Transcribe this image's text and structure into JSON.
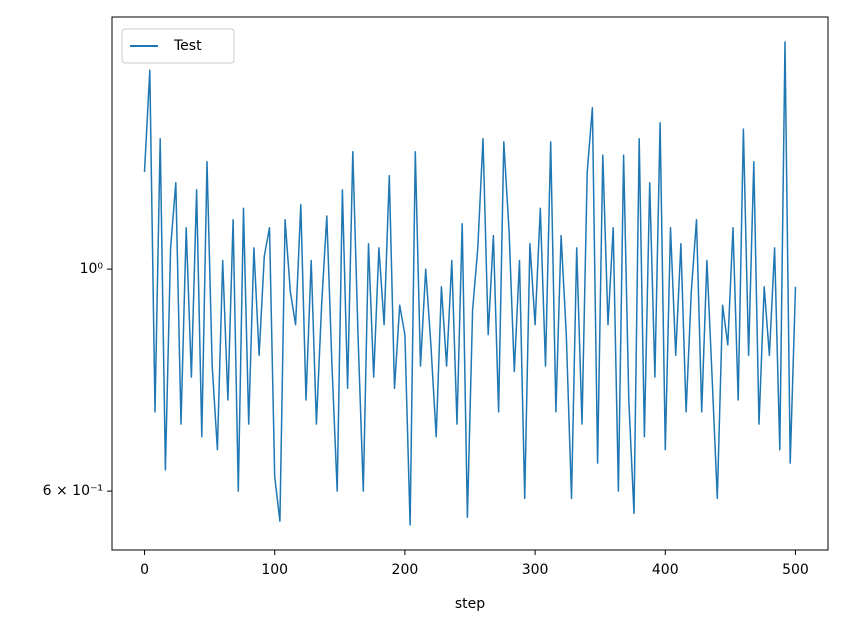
{
  "chart_data": {
    "type": "line",
    "xlabel": "step",
    "yscale": "log",
    "legend": "upper left",
    "x": [
      0,
      4,
      8,
      12,
      16,
      20,
      24,
      28,
      32,
      36,
      40,
      44,
      48,
      52,
      56,
      60,
      64,
      68,
      72,
      76,
      80,
      84,
      88,
      92,
      96,
      100,
      104,
      108,
      112,
      116,
      120,
      124,
      128,
      132,
      136,
      140,
      144,
      148,
      152,
      156,
      160,
      164,
      168,
      172,
      176,
      180,
      184,
      188,
      192,
      196,
      200,
      204,
      208,
      212,
      216,
      220,
      224,
      228,
      232,
      236,
      240,
      244,
      248,
      252,
      256,
      260,
      264,
      268,
      272,
      276,
      280,
      284,
      288,
      292,
      296,
      300,
      304,
      308,
      312,
      316,
      320,
      324,
      328,
      332,
      336,
      340,
      344,
      348,
      352,
      356,
      360,
      364,
      368,
      372,
      376,
      380,
      384,
      388,
      392,
      396,
      400,
      404,
      408,
      412,
      416,
      420,
      424,
      428,
      432,
      436,
      440,
      444,
      448,
      452,
      456,
      460,
      464,
      468,
      472,
      476,
      480,
      484,
      488,
      492,
      496,
      500
    ],
    "series": [
      {
        "name": "Test",
        "color": "#1f77b4",
        "values": [
          1.25,
          1.58,
          0.72,
          1.35,
          0.63,
          1.05,
          1.22,
          0.7,
          1.1,
          0.78,
          1.2,
          0.68,
          1.28,
          0.8,
          0.66,
          1.02,
          0.74,
          1.12,
          0.6,
          1.15,
          0.7,
          1.05,
          0.82,
          1.03,
          1.1,
          0.62,
          0.56,
          1.12,
          0.95,
          0.88,
          1.16,
          0.74,
          1.02,
          0.7,
          0.92,
          1.13,
          0.8,
          0.6,
          1.2,
          0.76,
          1.31,
          0.86,
          0.6,
          1.06,
          0.78,
          1.05,
          0.88,
          1.24,
          0.76,
          0.92,
          0.86,
          0.555,
          1.31,
          0.8,
          1.0,
          0.84,
          0.68,
          0.96,
          0.8,
          1.02,
          0.7,
          1.11,
          0.565,
          0.91,
          1.05,
          1.35,
          0.86,
          1.08,
          0.72,
          1.34,
          1.09,
          0.79,
          1.02,
          0.59,
          1.06,
          0.88,
          1.15,
          0.8,
          1.34,
          0.72,
          1.08,
          0.86,
          0.59,
          1.05,
          0.7,
          1.25,
          1.45,
          0.64,
          1.3,
          0.88,
          1.1,
          0.6,
          1.3,
          0.74,
          0.57,
          1.35,
          0.68,
          1.22,
          0.78,
          1.4,
          0.66,
          1.1,
          0.82,
          1.06,
          0.72,
          0.95,
          1.12,
          0.72,
          1.02,
          0.78,
          0.59,
          0.92,
          0.84,
          1.1,
          0.74,
          1.38,
          0.82,
          1.28,
          0.7,
          0.96,
          0.82,
          1.05,
          0.66,
          1.686,
          0.64,
          0.96
        ]
      }
    ],
    "xlim": [
      -25,
      525
    ],
    "xticks": [
      0,
      100,
      200,
      300,
      400,
      500
    ],
    "ylim": [
      0.524,
      1.786
    ],
    "yticks": [
      {
        "value": 0.6,
        "label": "6 × 10⁻¹"
      },
      {
        "value": 1,
        "label": "10⁰"
      }
    ]
  }
}
